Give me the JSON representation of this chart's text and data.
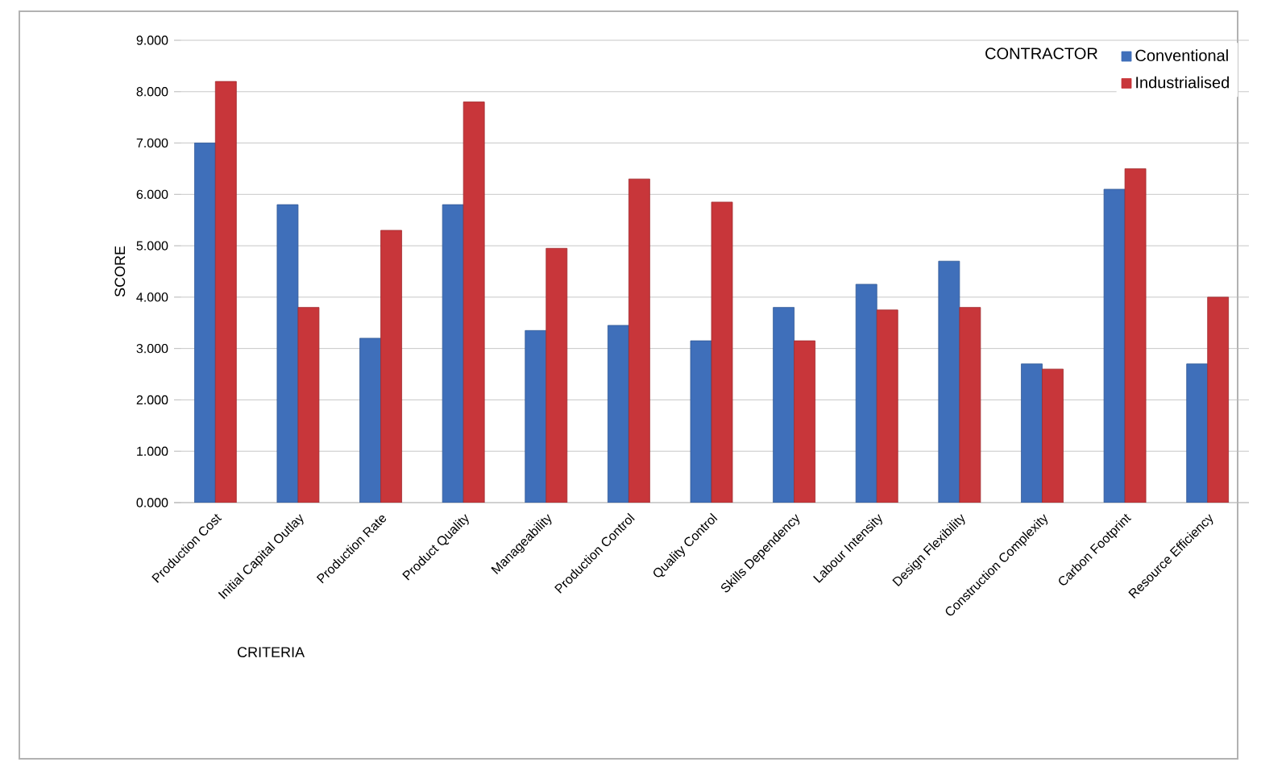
{
  "chart_data": {
    "type": "bar",
    "xlabel": "CRITERIA",
    "ylabel": "SCORE",
    "legend_title": "CONTRACTOR",
    "categories": [
      "Production Cost",
      "Initial Capital Outlay",
      "Production Rate",
      "Product Quality",
      "Manageability",
      "Production Control",
      "Quality Control",
      "Skills Dependency",
      "Labour Intensity",
      "Design Flexibility",
      "Construction Complexity",
      "Carbon Footprint",
      "Resource Efficiency"
    ],
    "series": [
      {
        "name": "Conventional",
        "color": "#3f6fba",
        "values": [
          7.0,
          5.8,
          3.2,
          5.8,
          3.35,
          3.45,
          3.15,
          3.8,
          4.25,
          4.7,
          2.7,
          6.1,
          2.7
        ]
      },
      {
        "name": "Industrialised",
        "color": "#c8363a",
        "values": [
          8.2,
          3.8,
          5.3,
          7.8,
          4.95,
          6.3,
          5.85,
          3.15,
          3.75,
          3.8,
          2.6,
          6.5,
          4.0
        ]
      }
    ],
    "ylim": [
      0,
      9
    ],
    "yticks": [
      {
        "value": 0,
        "label": "0.000"
      },
      {
        "value": 1,
        "label": "1.000"
      },
      {
        "value": 2,
        "label": "2.000"
      },
      {
        "value": 3,
        "label": "3.000"
      },
      {
        "value": 4,
        "label": "4.000"
      },
      {
        "value": 5,
        "label": "5.000"
      },
      {
        "value": 6,
        "label": "6.000"
      },
      {
        "value": 7,
        "label": "7.000"
      },
      {
        "value": 8,
        "label": "8.000"
      },
      {
        "value": 9,
        "label": "9.000"
      }
    ],
    "grid": "y",
    "legend": "top right"
  }
}
